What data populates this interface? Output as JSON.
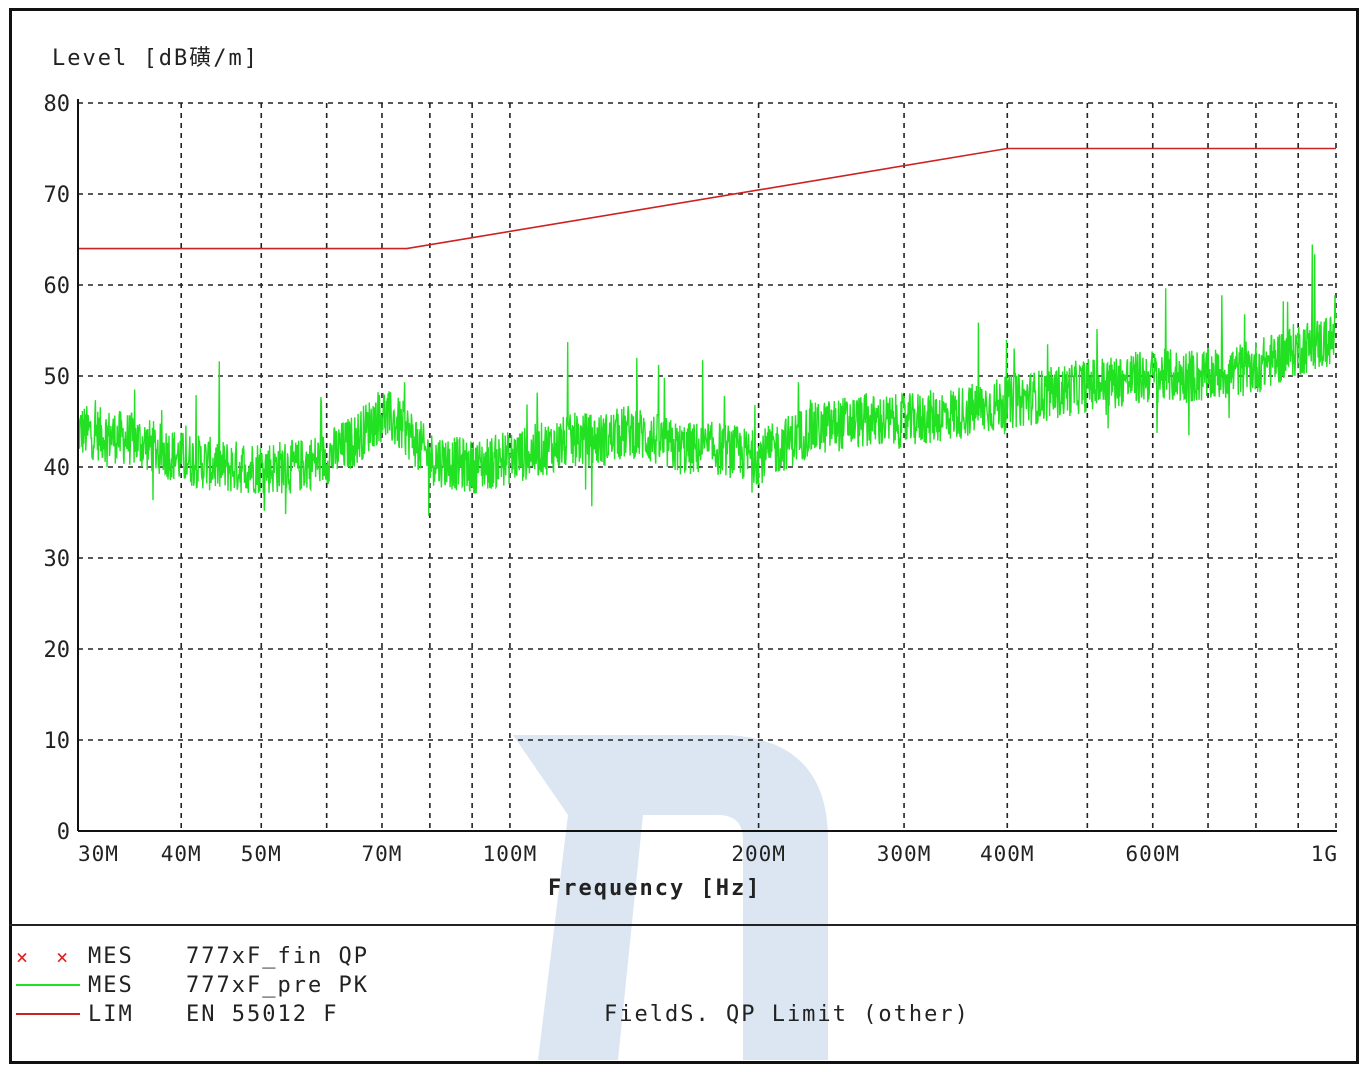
{
  "chart_data": {
    "type": "line",
    "xscale": "log",
    "xlim": [
      30000000,
      1000000000
    ],
    "ylim": [
      0,
      80
    ],
    "grid": true,
    "ylabel": "Level [dB磺/m]",
    "xlabel": "Frequency [Hz]",
    "yticks": [
      {
        "value": 0,
        "label": "0"
      },
      {
        "value": 10,
        "label": "10"
      },
      {
        "value": 20,
        "label": "20"
      },
      {
        "value": 30,
        "label": "30"
      },
      {
        "value": 40,
        "label": "40"
      },
      {
        "value": 50,
        "label": "50"
      },
      {
        "value": 60,
        "label": "60"
      },
      {
        "value": 70,
        "label": "70"
      },
      {
        "value": 80,
        "label": "80"
      }
    ],
    "xticks": [
      {
        "value": 30000000,
        "label": "30M"
      },
      {
        "value": 40000000,
        "label": "40M"
      },
      {
        "value": 50000000,
        "label": "50M"
      },
      {
        "value": 70000000,
        "label": "70M"
      },
      {
        "value": 100000000,
        "label": "100M"
      },
      {
        "value": 200000000,
        "label": "200M"
      },
      {
        "value": 300000000,
        "label": "300M"
      },
      {
        "value": 400000000,
        "label": "400M"
      },
      {
        "value": 600000000,
        "label": "600M"
      },
      {
        "value": 1000000000,
        "label": "1G"
      }
    ],
    "gridlines_x": [
      30000000,
      40000000,
      50000000,
      60000000,
      70000000,
      80000000,
      90000000,
      100000000,
      200000000,
      300000000,
      400000000,
      500000000,
      600000000,
      700000000,
      800000000,
      900000000,
      1000000000
    ],
    "series": [
      {
        "name": "777xF_pre PK",
        "color": "#22e022",
        "x": [
          30000000,
          35000000,
          40000000,
          45000000,
          50000000,
          55000000,
          60000000,
          65000000,
          70000000,
          75000000,
          80000000,
          90000000,
          100000000,
          110000000,
          120000000,
          130000000,
          140000000,
          160000000,
          180000000,
          200000000,
          230000000,
          260000000,
          300000000,
          350000000,
          400000000,
          450000000,
          500000000,
          600000000,
          700000000,
          800000000,
          900000000,
          1000000000
        ],
        "values": [
          44,
          43,
          41,
          40,
          40,
          40,
          41,
          43,
          46,
          44,
          41,
          40,
          41,
          42,
          43,
          43,
          44,
          42,
          42,
          41,
          44,
          45,
          45,
          46,
          47,
          48,
          49,
          50,
          50,
          51,
          53,
          54
        ]
      },
      {
        "name": "EN 55012 F",
        "color": "#cc2222",
        "x": [
          30000000,
          75000000,
          400000000,
          1000000000
        ],
        "values": [
          64,
          64,
          75,
          75
        ]
      }
    ]
  },
  "legend": [
    {
      "symbol": "× ×",
      "kind": "MES",
      "name": "777xF_fin QP",
      "desc": "",
      "color": "#dd2222"
    },
    {
      "symbol": "line",
      "kind": "MES",
      "name": "777xF_pre PK",
      "desc": "",
      "color": "#22e022"
    },
    {
      "symbol": "line",
      "kind": "LIM",
      "name": "EN 55012 F",
      "desc": "FieldS. QP Limit (other)",
      "color": "#cc2222"
    }
  ],
  "watermark_color": "#dbe6f2"
}
